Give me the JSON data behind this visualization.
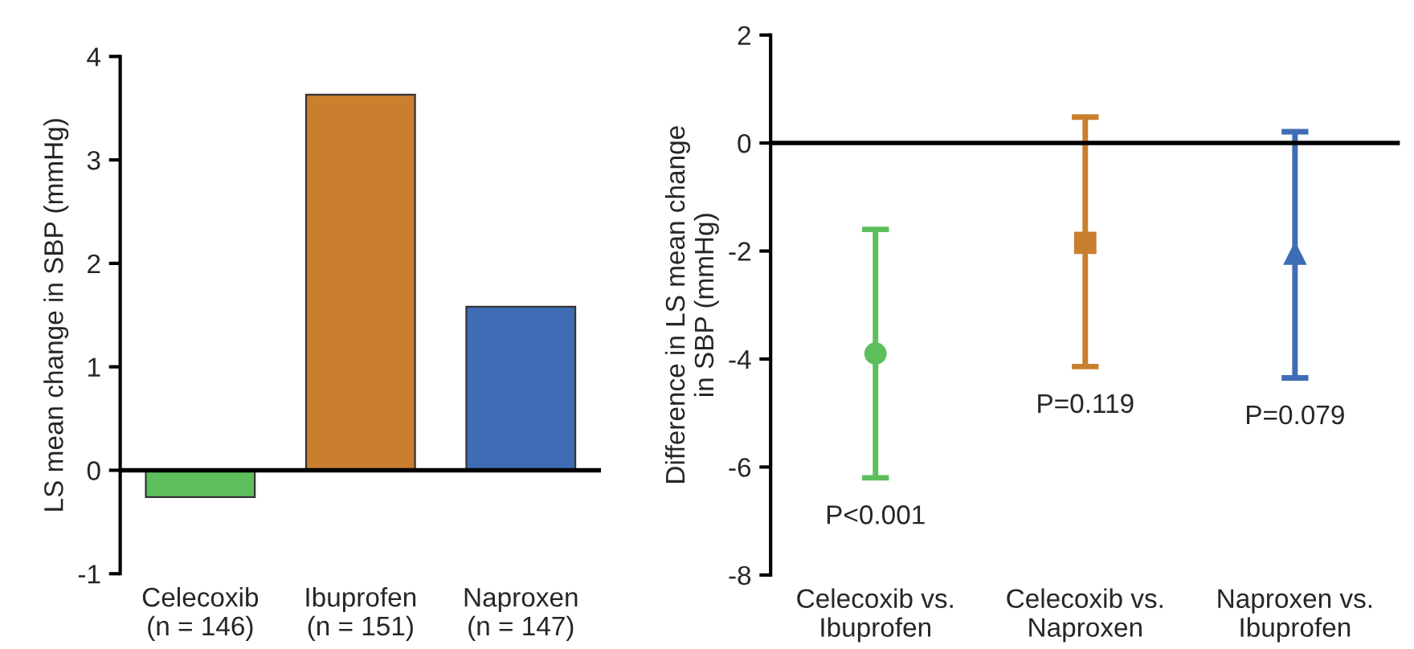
{
  "chart_data": [
    {
      "type": "bar",
      "ylabel": "LS mean change in SBP (mmHg)",
      "categories": [
        "Celecoxib\n(n = 146)",
        "Ibuprofen\n(n = 151)",
        "Naproxen\n(n = 147)"
      ],
      "values": [
        -0.26,
        3.63,
        1.58
      ],
      "colors": [
        "#5cbf5c",
        "#c97f2e",
        "#3f6db5"
      ],
      "ylim": [
        -1,
        4
      ],
      "yticks": [
        -1,
        0,
        1,
        2,
        3,
        4
      ],
      "ref_lines": [
        {
          "axis": "y",
          "value": 0
        }
      ],
      "grid": false,
      "legend": false
    },
    {
      "type": "scatter",
      "ylabel": "Difference in LS mean change\nin SBP (mmHg)",
      "categories": [
        "Celecoxib vs.\nIbuprofen",
        "Celecoxib vs.\nNaproxen",
        "Naproxen vs.\nIbuprofen"
      ],
      "series": [
        {
          "color": "#5cbf5c",
          "marker": "circle",
          "values": [
            -3.9,
            null,
            null
          ],
          "errors": [
            [
              -6.2,
              -1.6
            ],
            null,
            null
          ]
        },
        {
          "color": "#c97f2e",
          "marker": "square",
          "values": [
            null,
            -1.85,
            null
          ],
          "errors": [
            null,
            [
              -4.14,
              0.48
            ],
            null
          ]
        },
        {
          "color": "#3f6db5",
          "marker": "triangle",
          "values": [
            null,
            null,
            -2.05
          ],
          "errors": [
            null,
            null,
            [
              -4.35,
              0.21
            ]
          ]
        }
      ],
      "ylim": [
        -8,
        2
      ],
      "yticks": [
        -8,
        -6,
        -4,
        -2,
        0,
        2
      ],
      "ref_lines": [
        {
          "axis": "y",
          "value": 0
        }
      ],
      "grid": false,
      "legend": false,
      "annotations": [
        "P<0.001",
        "P=0.119",
        "P=0.079"
      ]
    }
  ]
}
